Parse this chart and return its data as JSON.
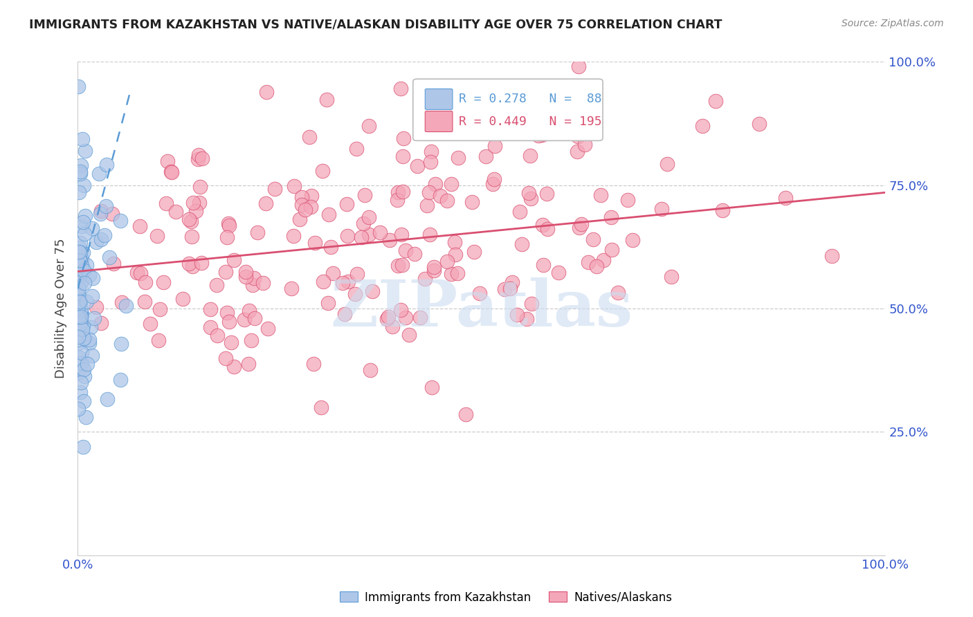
{
  "title": "IMMIGRANTS FROM KAZAKHSTAN VS NATIVE/ALASKAN DISABILITY AGE OVER 75 CORRELATION CHART",
  "source": "Source: ZipAtlas.com",
  "ylabel": "Disability Age Over 75",
  "watermark": "ZIPatlas",
  "legend_blue_r": "0.278",
  "legend_blue_n": "88",
  "legend_pink_r": "0.449",
  "legend_pink_n": "195",
  "legend_label_blue": "Immigrants from Kazakhstan",
  "legend_label_pink": "Natives/Alaskans",
  "blue_color": "#aec6e8",
  "blue_edge_color": "#5b9bd5",
  "blue_line_color": "#5b9bd5",
  "pink_color": "#f4a7b9",
  "pink_edge_color": "#d94f70",
  "pink_line_color": "#d94f70",
  "axis_label_color": "#3355cc",
  "grid_color": "#cccccc",
  "background_color": "#ffffff",
  "title_color": "#222222",
  "source_color": "#888888",
  "ylabel_color": "#444444",
  "watermark_color": "#ccdcf0",
  "xlim": [
    0,
    1
  ],
  "ylim": [
    0,
    1
  ],
  "yticks": [
    0.25,
    0.5,
    0.75,
    1.0
  ],
  "ytick_labels": [
    "25.0%",
    "50.0%",
    "75.0%",
    "100.0%"
  ],
  "xtick_labels": [
    "0.0%",
    "100.0%"
  ]
}
